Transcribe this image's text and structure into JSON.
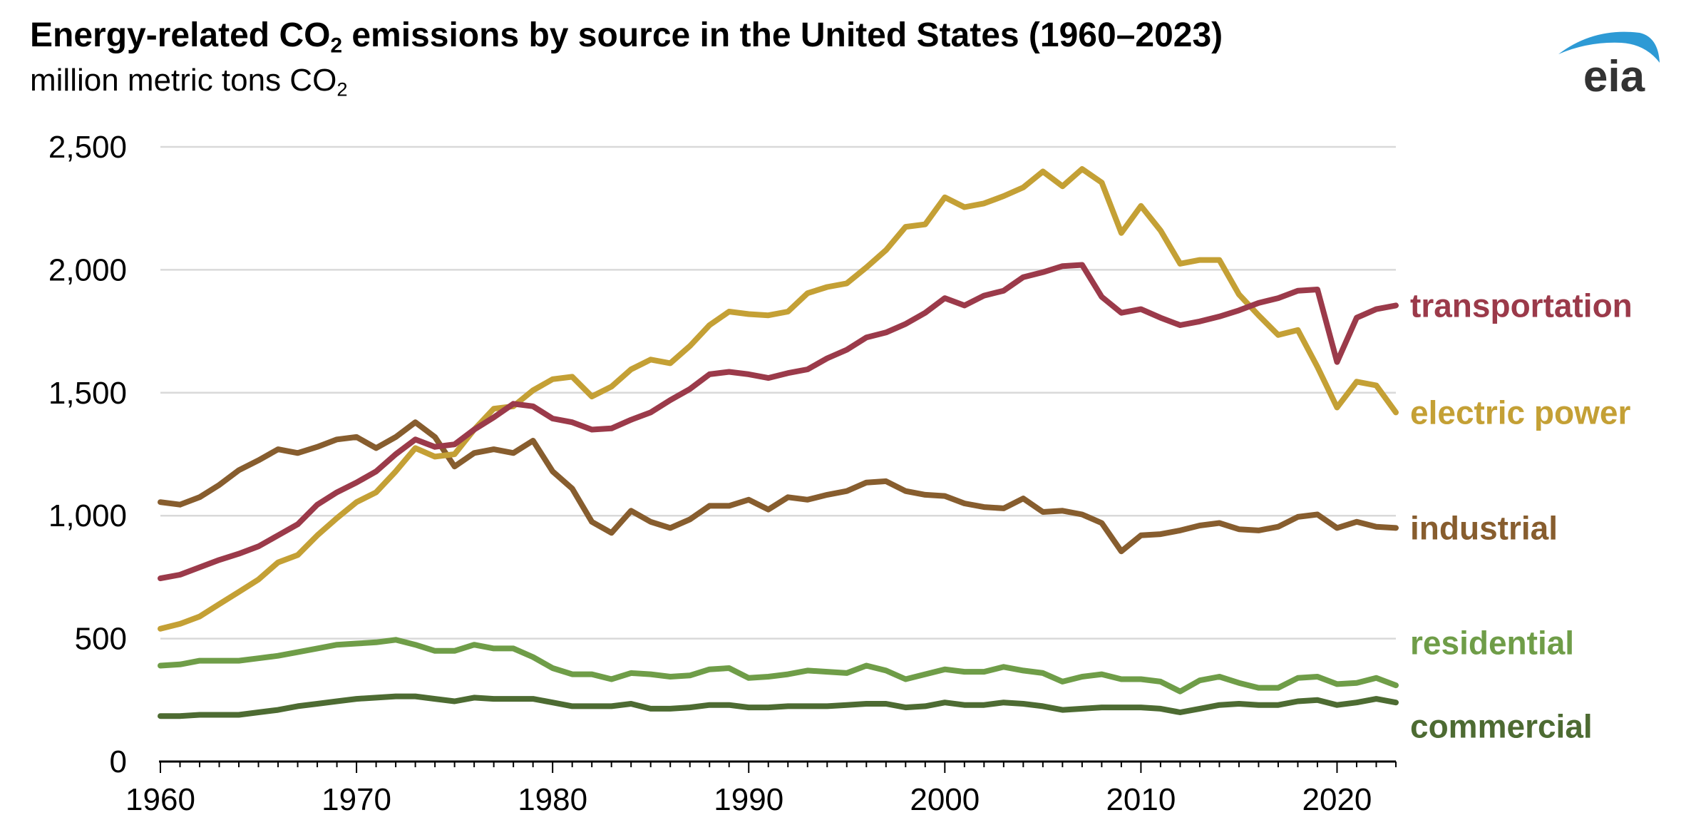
{
  "title": {
    "pre": "Energy-related CO",
    "sub": "2",
    "post": " emissions by source in the United States (1960–2023)"
  },
  "subtitle": {
    "pre": "million metric tons CO",
    "sub": "2"
  },
  "logo_text": "eia",
  "colors": {
    "transportation": "#9b3a4a",
    "electric_power": "#c4a035",
    "industrial": "#875d2e",
    "residential": "#6f9d48",
    "commercial": "#4d6b32",
    "grid": "#d9d9d9",
    "axis": "#000000",
    "logo_arc": "#2d9ad5",
    "logo_text": "#333333"
  },
  "chart_data": {
    "type": "line",
    "title": "Energy-related CO2 emissions by source in the United States (1960–2023)",
    "ylabel": "million metric tons CO2",
    "xlabel": "",
    "xlim": [
      1960,
      2023
    ],
    "ylim": [
      0,
      2500
    ],
    "x_ticks": [
      1960,
      1970,
      1980,
      1990,
      2000,
      2010,
      2020
    ],
    "y_ticks": [
      0,
      500,
      1000,
      1500,
      2000,
      2500
    ],
    "y_tick_labels": [
      "0",
      "500",
      "1,000",
      "1,500",
      "2,000",
      "2,500"
    ],
    "grid": true,
    "x": [
      1960,
      1961,
      1962,
      1963,
      1964,
      1965,
      1966,
      1967,
      1968,
      1969,
      1970,
      1971,
      1972,
      1973,
      1974,
      1975,
      1976,
      1977,
      1978,
      1979,
      1980,
      1981,
      1982,
      1983,
      1984,
      1985,
      1986,
      1987,
      1988,
      1989,
      1990,
      1991,
      1992,
      1993,
      1994,
      1995,
      1996,
      1997,
      1998,
      1999,
      2000,
      2001,
      2002,
      2003,
      2004,
      2005,
      2006,
      2007,
      2008,
      2009,
      2010,
      2011,
      2012,
      2013,
      2014,
      2015,
      2016,
      2017,
      2018,
      2019,
      2020,
      2021,
      2022,
      2023
    ],
    "series": [
      {
        "key": "transportation",
        "name": "transportation",
        "values": [
          745,
          760,
          790,
          820,
          845,
          875,
          920,
          965,
          1045,
          1095,
          1135,
          1180,
          1250,
          1310,
          1280,
          1290,
          1350,
          1400,
          1455,
          1445,
          1395,
          1380,
          1350,
          1355,
          1390,
          1420,
          1470,
          1515,
          1575,
          1585,
          1575,
          1560,
          1580,
          1595,
          1640,
          1675,
          1725,
          1745,
          1780,
          1825,
          1885,
          1855,
          1895,
          1915,
          1970,
          1990,
          2015,
          2020,
          1890,
          1825,
          1840,
          1805,
          1775,
          1790,
          1810,
          1835,
          1865,
          1885,
          1915,
          1920,
          1625,
          1805,
          1840,
          1855
        ]
      },
      {
        "key": "electric_power",
        "name": "electric power",
        "values": [
          540,
          560,
          590,
          640,
          690,
          740,
          810,
          840,
          920,
          990,
          1055,
          1095,
          1180,
          1275,
          1240,
          1250,
          1350,
          1435,
          1445,
          1510,
          1555,
          1565,
          1485,
          1525,
          1595,
          1635,
          1620,
          1690,
          1775,
          1830,
          1820,
          1815,
          1830,
          1905,
          1930,
          1945,
          2010,
          2080,
          2175,
          2185,
          2295,
          2255,
          2270,
          2300,
          2335,
          2400,
          2340,
          2410,
          2355,
          2150,
          2260,
          2160,
          2025,
          2040,
          2040,
          1900,
          1815,
          1735,
          1755,
          1605,
          1440,
          1545,
          1530,
          1420
        ]
      },
      {
        "key": "industrial",
        "name": "industrial",
        "values": [
          1055,
          1045,
          1075,
          1125,
          1185,
          1225,
          1270,
          1255,
          1280,
          1310,
          1320,
          1275,
          1320,
          1380,
          1320,
          1200,
          1255,
          1270,
          1255,
          1305,
          1180,
          1110,
          975,
          930,
          1020,
          975,
          950,
          985,
          1040,
          1040,
          1065,
          1025,
          1075,
          1065,
          1085,
          1100,
          1135,
          1140,
          1100,
          1085,
          1080,
          1050,
          1035,
          1030,
          1070,
          1015,
          1020,
          1005,
          970,
          855,
          920,
          925,
          940,
          960,
          970,
          945,
          940,
          955,
          995,
          1005,
          950,
          975,
          955,
          950
        ]
      },
      {
        "key": "residential",
        "name": "residential",
        "values": [
          390,
          395,
          410,
          410,
          410,
          420,
          430,
          445,
          460,
          475,
          480,
          485,
          495,
          475,
          450,
          450,
          475,
          460,
          460,
          425,
          380,
          355,
          355,
          335,
          360,
          355,
          345,
          350,
          375,
          380,
          340,
          345,
          355,
          370,
          365,
          360,
          390,
          370,
          335,
          355,
          375,
          365,
          365,
          385,
          370,
          360,
          325,
          345,
          355,
          335,
          335,
          325,
          285,
          330,
          345,
          320,
          300,
          300,
          340,
          345,
          315,
          320,
          340,
          310
        ]
      },
      {
        "key": "commercial",
        "name": "commercial",
        "values": [
          185,
          185,
          190,
          190,
          190,
          200,
          210,
          225,
          235,
          245,
          255,
          260,
          265,
          265,
          255,
          245,
          260,
          255,
          255,
          255,
          240,
          225,
          225,
          225,
          235,
          215,
          215,
          220,
          230,
          230,
          220,
          220,
          225,
          225,
          225,
          230,
          235,
          235,
          220,
          225,
          240,
          230,
          230,
          240,
          235,
          225,
          210,
          215,
          220,
          220,
          220,
          215,
          200,
          215,
          230,
          235,
          230,
          230,
          245,
          250,
          230,
          240,
          255,
          240
        ]
      }
    ],
    "labels": {
      "transportation": "transportation",
      "electric_power": "electric power",
      "industrial": "industrial",
      "residential": "residential",
      "commercial": "commercial"
    }
  }
}
